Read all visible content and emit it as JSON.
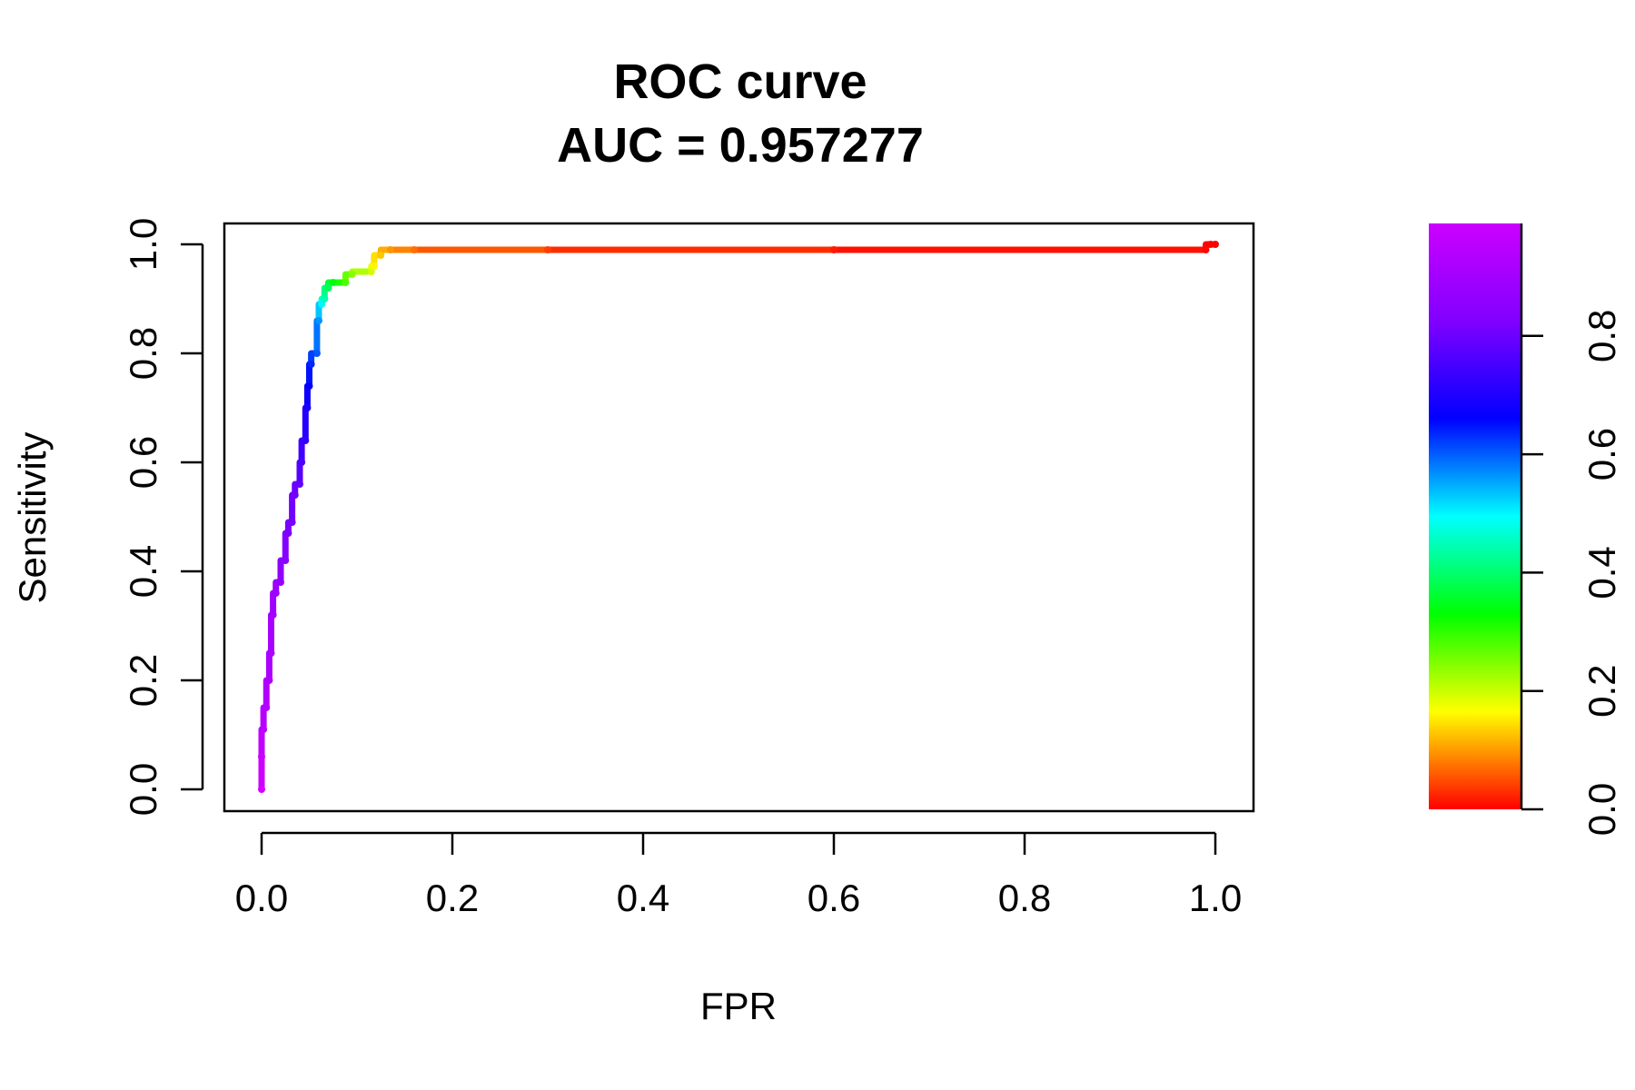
{
  "chart_data": {
    "type": "line",
    "title": "ROC curve",
    "subtitle": "AUC = 0.957277",
    "xlabel": "FPR",
    "ylabel": "Sensitivity",
    "xlim": [
      0,
      1
    ],
    "ylim": [
      0,
      1
    ],
    "x_ticks": [
      "0.0",
      "0.2",
      "0.4",
      "0.6",
      "0.8",
      "1.0"
    ],
    "y_ticks": [
      "0.0",
      "0.2",
      "0.4",
      "0.6",
      "0.8",
      "1.0"
    ],
    "grid": false,
    "legend": "none",
    "colorbar": {
      "colormap": "rainbow (red to magenta)",
      "range": [
        0,
        0.99
      ],
      "ticks": [
        "0.0",
        "0.2",
        "0.4",
        "0.6",
        "0.8"
      ]
    },
    "series": [
      {
        "color_by": "threshold",
        "points": [
          {
            "x": 0.0,
            "y": 0.0,
            "t": 0.99
          },
          {
            "x": 0.0,
            "y": 0.06,
            "t": 0.98
          },
          {
            "x": 0.002,
            "y": 0.11,
            "t": 0.97
          },
          {
            "x": 0.005,
            "y": 0.15,
            "t": 0.965
          },
          {
            "x": 0.008,
            "y": 0.2,
            "t": 0.96
          },
          {
            "x": 0.01,
            "y": 0.25,
            "t": 0.955
          },
          {
            "x": 0.012,
            "y": 0.32,
            "t": 0.95
          },
          {
            "x": 0.015,
            "y": 0.36,
            "t": 0.945
          },
          {
            "x": 0.02,
            "y": 0.38,
            "t": 0.94
          },
          {
            "x": 0.025,
            "y": 0.42,
            "t": 0.93
          },
          {
            "x": 0.028,
            "y": 0.47,
            "t": 0.92
          },
          {
            "x": 0.032,
            "y": 0.49,
            "t": 0.915
          },
          {
            "x": 0.035,
            "y": 0.54,
            "t": 0.91
          },
          {
            "x": 0.04,
            "y": 0.56,
            "t": 0.9
          },
          {
            "x": 0.042,
            "y": 0.6,
            "t": 0.88
          },
          {
            "x": 0.046,
            "y": 0.64,
            "t": 0.86
          },
          {
            "x": 0.048,
            "y": 0.7,
            "t": 0.84
          },
          {
            "x": 0.05,
            "y": 0.74,
            "t": 0.82
          },
          {
            "x": 0.052,
            "y": 0.78,
            "t": 0.79
          },
          {
            "x": 0.058,
            "y": 0.8,
            "t": 0.75
          },
          {
            "x": 0.06,
            "y": 0.86,
            "t": 0.7
          },
          {
            "x": 0.063,
            "y": 0.89,
            "t": 0.62
          },
          {
            "x": 0.066,
            "y": 0.9,
            "t": 0.55
          },
          {
            "x": 0.07,
            "y": 0.92,
            "t": 0.48
          },
          {
            "x": 0.075,
            "y": 0.93,
            "t": 0.42
          },
          {
            "x": 0.088,
            "y": 0.93,
            "t": 0.35
          },
          {
            "x": 0.095,
            "y": 0.945,
            "t": 0.3
          },
          {
            "x": 0.115,
            "y": 0.95,
            "t": 0.24
          },
          {
            "x": 0.118,
            "y": 0.96,
            "t": 0.2
          },
          {
            "x": 0.125,
            "y": 0.98,
            "t": 0.16
          },
          {
            "x": 0.135,
            "y": 0.99,
            "t": 0.12
          },
          {
            "x": 0.16,
            "y": 0.99,
            "t": 0.09
          },
          {
            "x": 0.3,
            "y": 0.99,
            "t": 0.05
          },
          {
            "x": 0.6,
            "y": 0.99,
            "t": 0.02
          },
          {
            "x": 0.99,
            "y": 0.99,
            "t": 0.005
          },
          {
            "x": 0.995,
            "y": 1.0,
            "t": 0.001
          },
          {
            "x": 1.0,
            "y": 1.0,
            "t": 0.0
          }
        ]
      }
    ]
  }
}
